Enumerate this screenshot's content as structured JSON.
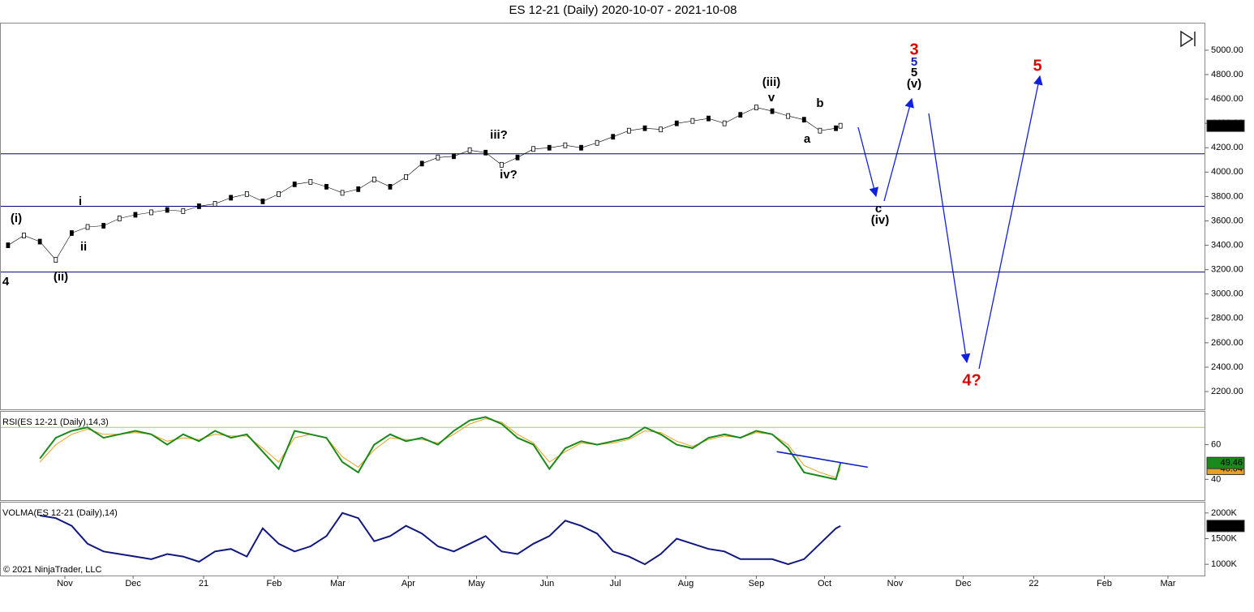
{
  "title": "ES 12-21 (Daily)  2020-10-07 - 2021-10-08",
  "copyright": "© 2021 NinjaTrader, LLC",
  "chart_data": [
    {
      "type": "line",
      "markers": true,
      "color": "#000000",
      "x": [
        "2020-10-07",
        "2020-10-14",
        "2020-10-21",
        "2020-10-28",
        "2020-11-04",
        "2020-11-11",
        "2020-11-18",
        "2020-11-25",
        "2020-12-02",
        "2020-12-09",
        "2020-12-16",
        "2020-12-23",
        "2020-12-30",
        "2021-01-06",
        "2021-01-13",
        "2021-01-20",
        "2021-01-27",
        "2021-02-03",
        "2021-02-10",
        "2021-02-17",
        "2021-02-24",
        "2021-03-03",
        "2021-03-10",
        "2021-03-17",
        "2021-03-24",
        "2021-03-31",
        "2021-04-07",
        "2021-04-14",
        "2021-04-21",
        "2021-04-28",
        "2021-05-05",
        "2021-05-12",
        "2021-05-19",
        "2021-05-26",
        "2021-06-02",
        "2021-06-09",
        "2021-06-16",
        "2021-06-23",
        "2021-06-30",
        "2021-07-07",
        "2021-07-14",
        "2021-07-21",
        "2021-07-28",
        "2021-08-04",
        "2021-08-11",
        "2021-08-18",
        "2021-08-25",
        "2021-09-01",
        "2021-09-08",
        "2021-09-15",
        "2021-09-22",
        "2021-09-29",
        "2021-10-06",
        "2021-10-08"
      ],
      "values": [
        3400,
        3480,
        3430,
        3280,
        3500,
        3550,
        3560,
        3620,
        3650,
        3670,
        3690,
        3680,
        3720,
        3740,
        3790,
        3820,
        3760,
        3820,
        3900,
        3920,
        3880,
        3830,
        3860,
        3940,
        3880,
        3960,
        4070,
        4120,
        4130,
        4180,
        4160,
        4060,
        4120,
        4190,
        4200,
        4220,
        4200,
        4240,
        4290,
        4340,
        4360,
        4350,
        4400,
        4420,
        4440,
        4400,
        4470,
        4530,
        4500,
        4460,
        4430,
        4340,
        4360,
        4380
      ],
      "last_value_label": "4380.00",
      "ylim": [
        2054,
        5219
      ],
      "yticks": [
        {
          "value": 2200,
          "label": "2200.00"
        },
        {
          "value": 2400,
          "label": "2400.00"
        },
        {
          "value": 2600,
          "label": "2600.00"
        },
        {
          "value": 2800,
          "label": "2800.00"
        },
        {
          "value": 3000,
          "label": "3000.00"
        },
        {
          "value": 3200,
          "label": "3200.00"
        },
        {
          "value": 3400,
          "label": "3400.00"
        },
        {
          "value": 3600,
          "label": "3600.00"
        },
        {
          "value": 3800,
          "label": "3800.00"
        },
        {
          "value": 4000,
          "label": "4000.00"
        },
        {
          "value": 4200,
          "label": "4200.00"
        },
        {
          "value": 4400,
          "label": "4400.00"
        },
        {
          "value": 4600,
          "label": "4600.00"
        },
        {
          "value": 4800,
          "label": "4800.00"
        },
        {
          "value": 5000,
          "label": "5000.00"
        }
      ],
      "hlines": [
        4150,
        3720,
        3180
      ],
      "hline_color": "#000080",
      "annotations": [
        {
          "text": "(i)",
          "color": "#000"
        },
        {
          "text": "i",
          "color": "#000"
        },
        {
          "text": "ii",
          "color": "#000"
        },
        {
          "text": "(ii)",
          "color": "#000"
        },
        {
          "text": "4",
          "color": "#000"
        },
        {
          "text": "iii?",
          "color": "#000"
        },
        {
          "text": "iv?",
          "color": "#000"
        },
        {
          "text": "(iii)",
          "color": "#000"
        },
        {
          "text": "v",
          "color": "#000"
        },
        {
          "text": "b",
          "color": "#000"
        },
        {
          "text": "a",
          "color": "#000"
        },
        {
          "text": "c",
          "color": "#000"
        },
        {
          "text": "(iv)",
          "color": "#000"
        },
        {
          "text": "3",
          "color": "#e00000"
        },
        {
          "text": "5",
          "color": "#1020c0"
        },
        {
          "text": "5",
          "color": "#000"
        },
        {
          "text": "(v)",
          "color": "#000"
        },
        {
          "text": "5",
          "color": "#e00000"
        },
        {
          "text": "4?",
          "color": "#e00000"
        }
      ]
    },
    {
      "type": "line",
      "label": "RSI(ES 12-21 (Daily),14,3)",
      "x": [
        "2020-10-07",
        "2020-10-14",
        "2020-10-21",
        "2020-10-28",
        "2020-11-04",
        "2020-11-11",
        "2020-11-18",
        "2020-11-25",
        "2020-12-02",
        "2020-12-09",
        "2020-12-16",
        "2020-12-23",
        "2020-12-30",
        "2021-01-06",
        "2021-01-13",
        "2021-01-20",
        "2021-01-27",
        "2021-02-03",
        "2021-02-10",
        "2021-02-17",
        "2021-02-24",
        "2021-03-03",
        "2021-03-10",
        "2021-03-17",
        "2021-03-24",
        "2021-03-31",
        "2021-04-07",
        "2021-04-14",
        "2021-04-21",
        "2021-04-28",
        "2021-05-05",
        "2021-05-12",
        "2021-05-19",
        "2021-05-26",
        "2021-06-02",
        "2021-06-09",
        "2021-06-16",
        "2021-06-23",
        "2021-06-30",
        "2021-07-07",
        "2021-07-14",
        "2021-07-21",
        "2021-07-28",
        "2021-08-04",
        "2021-08-11",
        "2021-08-18",
        "2021-08-25",
        "2021-09-01",
        "2021-09-08",
        "2021-09-15",
        "2021-09-22",
        "2021-09-29",
        "2021-10-06",
        "2021-10-08"
      ],
      "series": [
        {
          "color": "#1a8a1a",
          "values": [
            null,
            null,
            52,
            64,
            68,
            70,
            64,
            66,
            68,
            66,
            60,
            66,
            62,
            68,
            64,
            66,
            56,
            46,
            68,
            66,
            64,
            50,
            44,
            60,
            66,
            62,
            64,
            60,
            68,
            74,
            76,
            72,
            64,
            60,
            46,
            58,
            62,
            60,
            62,
            64,
            70,
            66,
            60,
            58,
            64,
            66,
            64,
            68,
            66,
            58,
            44,
            42,
            40,
            49.46
          ],
          "value_label": "49.46"
        },
        {
          "color": "#e8a020",
          "values": [
            null,
            null,
            50,
            60,
            66,
            69,
            66,
            66,
            67,
            66,
            62,
            64,
            63,
            66,
            65,
            65,
            58,
            50,
            64,
            66,
            64,
            53,
            47,
            57,
            64,
            63,
            63,
            61,
            66,
            72,
            75,
            73,
            66,
            61,
            50,
            56,
            61,
            60,
            61,
            63,
            68,
            67,
            62,
            59,
            63,
            65,
            64,
            67,
            66,
            60,
            48,
            44,
            41,
            46.04
          ],
          "value_label": "46.04"
        }
      ],
      "ylim": [
        28,
        79
      ],
      "yticks": [
        40,
        60
      ],
      "level": 70,
      "level_color": "#a8c860",
      "trendline": [
        56,
        47
      ],
      "trendline_color": "#1020c0"
    },
    {
      "type": "line",
      "label": "VOLMA(ES 12-21 (Daily),14)",
      "color": "#101880",
      "x": [
        "2020-10-07",
        "2020-10-14",
        "2020-10-21",
        "2020-10-28",
        "2020-11-04",
        "2020-11-11",
        "2020-11-18",
        "2020-11-25",
        "2020-12-02",
        "2020-12-09",
        "2020-12-16",
        "2020-12-23",
        "2020-12-30",
        "2021-01-06",
        "2021-01-13",
        "2021-01-20",
        "2021-01-27",
        "2021-02-03",
        "2021-02-10",
        "2021-02-17",
        "2021-02-24",
        "2021-03-03",
        "2021-03-10",
        "2021-03-17",
        "2021-03-24",
        "2021-03-31",
        "2021-04-07",
        "2021-04-14",
        "2021-04-21",
        "2021-04-28",
        "2021-05-05",
        "2021-05-12",
        "2021-05-19",
        "2021-05-26",
        "2021-06-02",
        "2021-06-09",
        "2021-06-16",
        "2021-06-23",
        "2021-06-30",
        "2021-07-07",
        "2021-07-14",
        "2021-07-21",
        "2021-07-28",
        "2021-08-04",
        "2021-08-11",
        "2021-08-18",
        "2021-08-25",
        "2021-09-01",
        "2021-09-08",
        "2021-09-15",
        "2021-09-22",
        "2021-09-29",
        "2021-10-06",
        "2021-10-08"
      ],
      "values": [
        null,
        null,
        1950000,
        1900000,
        1750000,
        1400000,
        1250000,
        1200000,
        1150000,
        1100000,
        1200000,
        1150000,
        1050000,
        1250000,
        1300000,
        1150000,
        1700000,
        1400000,
        1250000,
        1350000,
        1550000,
        2000000,
        1900000,
        1450000,
        1550000,
        1750000,
        1600000,
        1350000,
        1250000,
        1400000,
        1550000,
        1250000,
        1200000,
        1400000,
        1550000,
        1850000,
        1750000,
        1600000,
        1250000,
        1150000,
        1000000,
        1200000,
        1500000,
        1400000,
        1300000,
        1250000,
        1100000,
        1100000,
        1100000,
        1000000,
        1100000,
        1400000,
        1700000,
        1747000
      ],
      "last_value_label": "1747K",
      "ylim": [
        781000,
        2203000
      ],
      "yticks": [
        {
          "value": 1000000,
          "label": "1000K"
        },
        {
          "value": 1500000,
          "label": "1500K"
        },
        {
          "value": 2000000,
          "label": "2000K"
        }
      ],
      "xticks": [
        {
          "value": "2020-11-01",
          "label": "Nov"
        },
        {
          "value": "2020-12-01",
          "label": "Dec"
        },
        {
          "value": "2021-01-01",
          "label": "21"
        },
        {
          "value": "2021-02-01",
          "label": "Feb"
        },
        {
          "value": "2021-03-01",
          "label": "Mar"
        },
        {
          "value": "2021-04-01",
          "label": "Apr"
        },
        {
          "value": "2021-05-01",
          "label": "May"
        },
        {
          "value": "2021-06-01",
          "label": "Jun"
        },
        {
          "value": "2021-07-01",
          "label": "Jul"
        },
        {
          "value": "2021-08-01",
          "label": "Aug"
        },
        {
          "value": "2021-09-01",
          "label": "Sep"
        },
        {
          "value": "2021-10-01",
          "label": "Oct"
        },
        {
          "value": "2021-11-01",
          "label": "Nov"
        },
        {
          "value": "2021-12-01",
          "label": "Dec"
        },
        {
          "value": "2022-01-01",
          "label": "22"
        },
        {
          "value": "2022-02-01",
          "label": "Feb"
        },
        {
          "value": "2022-03-01",
          "label": "Mar"
        }
      ]
    }
  ]
}
